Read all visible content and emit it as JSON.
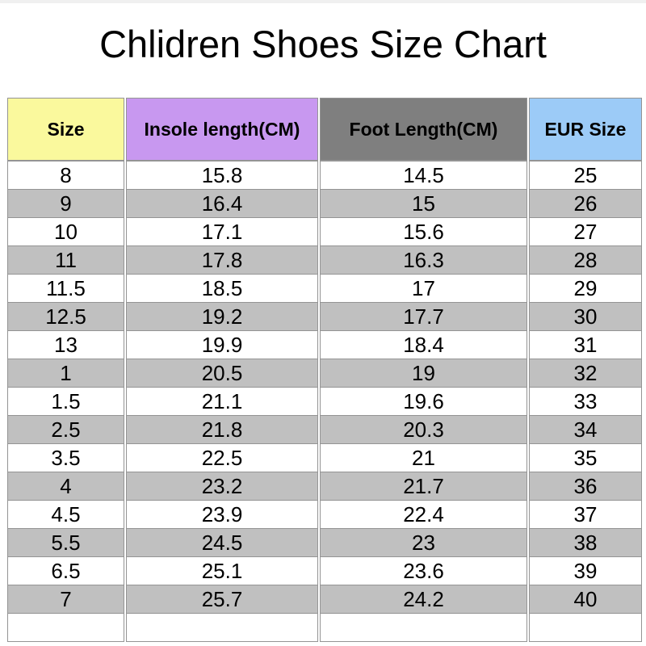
{
  "page": {
    "title": "Chlidren Shoes Size Chart"
  },
  "chart_data": {
    "type": "table",
    "title": "Chlidren Shoes Size Chart",
    "columns": [
      "Size",
      "Insole length(CM)",
      "Foot Length(CM)",
      "EUR Size"
    ],
    "rows": [
      [
        "8",
        "15.8",
        "14.5",
        "25"
      ],
      [
        "9",
        "16.4",
        "15",
        "26"
      ],
      [
        "10",
        "17.1",
        "15.6",
        "27"
      ],
      [
        "11",
        "17.8",
        "16.3",
        "28"
      ],
      [
        "11.5",
        "18.5",
        "17",
        "29"
      ],
      [
        "12.5",
        "19.2",
        "17.7",
        "30"
      ],
      [
        "13",
        "19.9",
        "18.4",
        "31"
      ],
      [
        "1",
        "20.5",
        "19",
        "32"
      ],
      [
        "1.5",
        "21.1",
        "19.6",
        "33"
      ],
      [
        "2.5",
        "21.8",
        "20.3",
        "34"
      ],
      [
        "3.5",
        "22.5",
        "21",
        "35"
      ],
      [
        "4",
        "23.2",
        "21.7",
        "36"
      ],
      [
        "4.5",
        "23.9",
        "22.4",
        "37"
      ],
      [
        "5.5",
        "24.5",
        "23",
        "38"
      ],
      [
        "6.5",
        "25.1",
        "23.6",
        "39"
      ],
      [
        "7",
        "25.7",
        "24.2",
        "40"
      ],
      [
        "",
        "",
        "",
        ""
      ]
    ],
    "layout": {
      "header_colors": [
        "#FAF99D",
        "#C898F0",
        "#7F7F7F",
        "#9CCBF7"
      ],
      "row_alt_color": "#C0C0C0",
      "row_base_color": "#FFFFFF",
      "border_color": "#949494",
      "grid": "on",
      "legend": "none"
    }
  }
}
